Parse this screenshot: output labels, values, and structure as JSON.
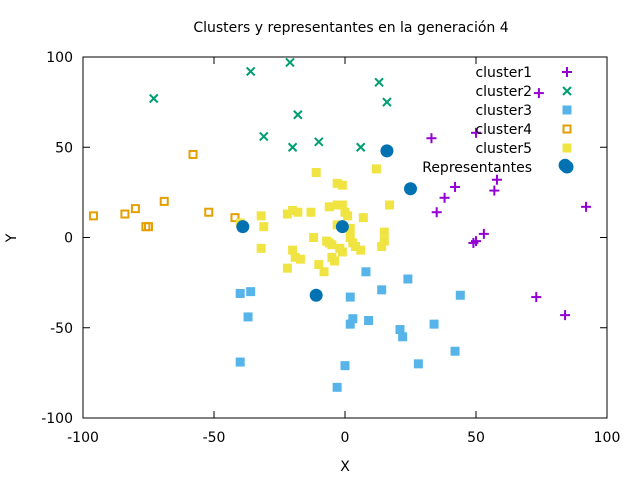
{
  "chart_data": {
    "type": "scatter",
    "title": "Clusters y representantes en la generación 4",
    "xlabel": "X",
    "ylabel": "Y",
    "xlim": [
      -100,
      100
    ],
    "ylim": [
      -100,
      100
    ],
    "xticks": [
      -100,
      -50,
      0,
      50,
      100
    ],
    "yticks": [
      -100,
      -50,
      0,
      50,
      100
    ],
    "grid": false,
    "legend_position": "top-right",
    "series": [
      {
        "name": "cluster1",
        "marker": "plus",
        "color": "#9400d3",
        "points": [
          [
            33,
            55
          ],
          [
            50,
            58
          ],
          [
            42,
            28
          ],
          [
            58,
            32
          ],
          [
            57,
            26
          ],
          [
            38,
            22
          ],
          [
            35,
            14
          ],
          [
            74,
            80
          ],
          [
            92,
            17
          ],
          [
            53,
            2
          ],
          [
            50,
            -2
          ],
          [
            49,
            -3
          ],
          [
            73,
            -33
          ],
          [
            84,
            -43
          ]
        ]
      },
      {
        "name": "cluster2",
        "marker": "cross",
        "color": "#009e73",
        "points": [
          [
            -21,
            97
          ],
          [
            -36,
            92
          ],
          [
            -73,
            77
          ],
          [
            13,
            86
          ],
          [
            16,
            75
          ],
          [
            -18,
            68
          ],
          [
            -31,
            56
          ],
          [
            -10,
            53
          ],
          [
            -20,
            50
          ],
          [
            6,
            50
          ]
        ]
      },
      {
        "name": "cluster3",
        "marker": "square",
        "color": "#56b4e9",
        "points": [
          [
            -40,
            -31
          ],
          [
            -36,
            -30
          ],
          [
            -37,
            -44
          ],
          [
            -40,
            -69
          ],
          [
            -3,
            -83
          ],
          [
            0,
            -71
          ],
          [
            2,
            -33
          ],
          [
            2,
            -48
          ],
          [
            3,
            -45
          ],
          [
            8,
            -19
          ],
          [
            9,
            -46
          ],
          [
            14,
            -29
          ],
          [
            21,
            -51
          ],
          [
            22,
            -55
          ],
          [
            24,
            -23
          ],
          [
            28,
            -70
          ],
          [
            34,
            -48
          ],
          [
            42,
            -63
          ],
          [
            44,
            -32
          ]
        ]
      },
      {
        "name": "cluster4",
        "marker": "open-square",
        "color": "#e69f00",
        "points": [
          [
            -96,
            12
          ],
          [
            -84,
            13
          ],
          [
            -80,
            16
          ],
          [
            -69,
            20
          ],
          [
            -58,
            46
          ],
          [
            -52,
            14
          ],
          [
            -42,
            11
          ],
          [
            -76,
            6
          ],
          [
            -75,
            6
          ]
        ]
      },
      {
        "name": "cluster5",
        "marker": "square",
        "color": "#f0e442",
        "points": [
          [
            -11,
            36
          ],
          [
            -3,
            30
          ],
          [
            -1,
            29
          ],
          [
            12,
            38
          ],
          [
            17,
            18
          ],
          [
            -32,
            12
          ],
          [
            -31,
            6
          ],
          [
            -22,
            13
          ],
          [
            -20,
            15
          ],
          [
            -18,
            14
          ],
          [
            -13,
            14
          ],
          [
            -6,
            17
          ],
          [
            -3,
            18
          ],
          [
            -1,
            18
          ],
          [
            0,
            14
          ],
          [
            1,
            12
          ],
          [
            7,
            11
          ],
          [
            -40,
            8
          ],
          [
            -3,
            7
          ],
          [
            2,
            5
          ],
          [
            -12,
            0
          ],
          [
            -7,
            -2
          ],
          [
            -6,
            -3
          ],
          [
            -5,
            -4
          ],
          [
            2,
            0
          ],
          [
            3,
            -3
          ],
          [
            4,
            -5
          ],
          [
            6,
            -7
          ],
          [
            15,
            3
          ],
          [
            15,
            -2
          ],
          [
            14,
            -5
          ],
          [
            -32,
            -6
          ],
          [
            -20,
            -7
          ],
          [
            -19,
            -11
          ],
          [
            -17,
            -12
          ],
          [
            -10,
            -15
          ],
          [
            -8,
            -19
          ],
          [
            -22,
            -17
          ],
          [
            -4,
            -13
          ],
          [
            -5,
            -11
          ],
          [
            -1,
            -8
          ],
          [
            -2,
            -6
          ]
        ]
      },
      {
        "name": "Representantes",
        "marker": "dot",
        "color": "#0072b2",
        "points": [
          [
            16,
            48
          ],
          [
            25,
            27
          ],
          [
            84,
            40
          ],
          [
            -39,
            6
          ],
          [
            -1,
            6
          ],
          [
            -11,
            -32
          ]
        ]
      }
    ]
  }
}
